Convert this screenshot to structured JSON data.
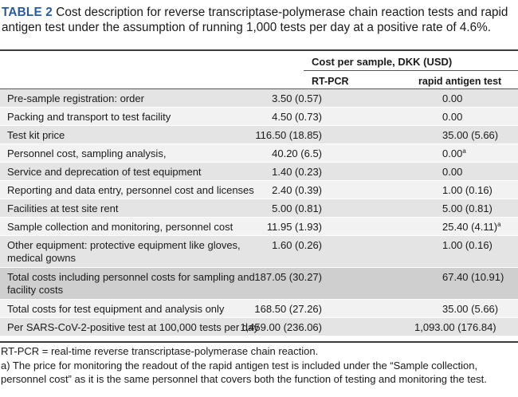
{
  "caption": {
    "tag": "TABLE 2",
    "text": " Cost description for reverse transcriptase-polymerase chain reaction tests and rapid antigen test under the assumption of running 1,000 tests per day at a positive rate of 4.6%."
  },
  "header": {
    "group": "Cost per sample, DKK (USD)",
    "col1": "RT-PCR",
    "col2": "rapid antigen test"
  },
  "rows": [
    {
      "label": "Pre-sample registration: order",
      "rtpcr": "3.50 (0.57)",
      "rapid": "0.00",
      "rapid_sup": ""
    },
    {
      "label": "Packing and transport to test facility",
      "rtpcr": "4.50 (0.73)",
      "rapid": "0.00",
      "rapid_sup": ""
    },
    {
      "label": "Test kit price",
      "rtpcr": "116.50 (18.85)",
      "rapid": "35.00 (5.66)",
      "rapid_sup": ""
    },
    {
      "label": "Personnel cost, sampling analysis,",
      "rtpcr": "40.20 (6.5)",
      "rapid": "0.00",
      "rapid_sup": "a"
    },
    {
      "label": "Service and deprecation of test equipment",
      "rtpcr": "1.40 (0.23)",
      "rapid": "0.00",
      "rapid_sup": ""
    },
    {
      "label": "Reporting and data entry, personnel cost and licenses",
      "rtpcr": "2.40 (0.39)",
      "rapid": "1.00 (0.16)",
      "rapid_sup": ""
    },
    {
      "label": "Facilities at test site rent",
      "rtpcr": "5.00 (0.81)",
      "rapid": "5.00 (0.81)",
      "rapid_sup": ""
    },
    {
      "label": "Sample collection and monitoring, personnel cost",
      "rtpcr": "11.95 (1.93)",
      "rapid": "25.40 (4.11)",
      "rapid_sup": "a"
    },
    {
      "label": "Other equipment: protective equipment like gloves, medical gowns",
      "rtpcr": "1.60 (0.26)",
      "rapid": "1.00 (0.16)",
      "rapid_sup": ""
    },
    {
      "label": "Total costs including personnel costs for sampling and facility costs",
      "rtpcr": "187.05 (30.27)",
      "rapid": "67.40 (10.91)",
      "rapid_sup": ""
    },
    {
      "label": "Total costs for test equipment and analysis only",
      "rtpcr": "168.50 (27.26)",
      "rapid": "35.00 (5.66)",
      "rapid_sup": ""
    },
    {
      "label": "Per SARS-CoV-2-positive test at 100,000 tests per day",
      "rtpcr": "1,459.00 (236.06)",
      "rapid": "1,093.00 (176.84)",
      "rapid_sup": ""
    }
  ],
  "footnotes": {
    "abbrev": "RT-PCR = real-time reverse transcriptase-polymerase chain reaction.",
    "note_a": "a) The price for monitoring the readout of the rapid antigen test is included under the “Sample collection, personnel cost” as it is the same personnel that covers both the function of testing and monitoring the test."
  }
}
